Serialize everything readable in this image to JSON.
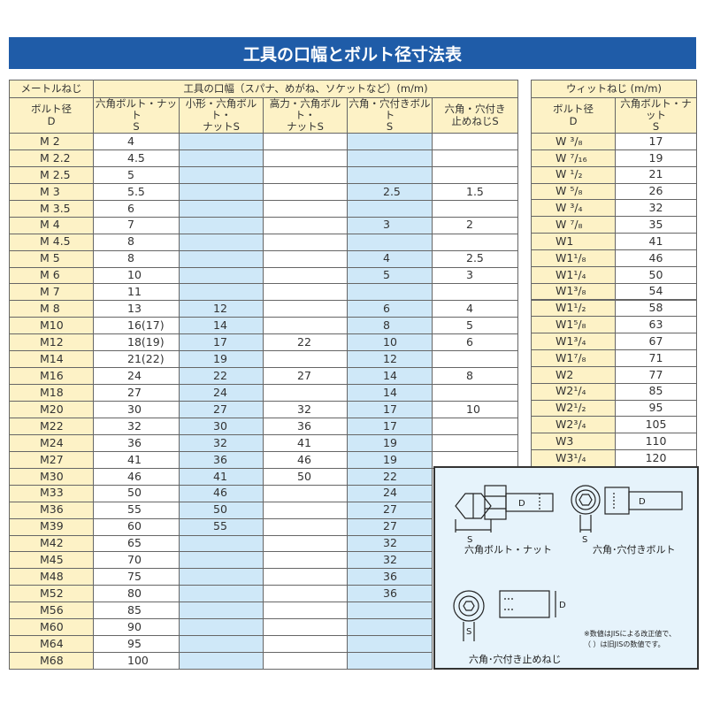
{
  "header": {
    "title": "工具の口幅とボルト径寸法表"
  },
  "metric_table": {
    "group_headers": [
      "メートルねじ",
      "工具の口幅（スパナ、めがね、ソケットなど）(m/m)"
    ],
    "columns": [
      "ボルト径\nD",
      "六角ボルト・ナット\nS",
      "小形・六角ボルト・\nナットS",
      "高力・六角ボルト・\nナットS",
      "六角・穴付きボルト\nS",
      "六角・穴付き\n止めねじS"
    ],
    "rows": [
      [
        "M 2",
        "4",
        null,
        null,
        null,
        null
      ],
      [
        "M 2.2",
        "4.5",
        null,
        null,
        null,
        null
      ],
      [
        "M 2.5",
        "5",
        null,
        null,
        null,
        null
      ],
      [
        "M 3",
        "5.5",
        null,
        null,
        "2.5",
        "1.5"
      ],
      [
        "M 3.5",
        "6",
        null,
        null,
        null,
        null
      ],
      [
        "M 4",
        "7",
        null,
        null,
        "3",
        "2"
      ],
      [
        "M 4.5",
        "8",
        null,
        null,
        null,
        null
      ],
      [
        "M 5",
        "8",
        null,
        null,
        "4",
        "2.5"
      ],
      [
        "M 6",
        "10",
        null,
        null,
        "5",
        "3"
      ],
      [
        "M 7",
        "11",
        null,
        null,
        null,
        null
      ],
      [
        "M 8",
        "13",
        "12",
        null,
        "6",
        "4"
      ],
      [
        "M10",
        "16(17)",
        "14",
        null,
        "8",
        "5"
      ],
      [
        "M12",
        "18(19)",
        "17",
        "22",
        "10",
        "6"
      ],
      [
        "M14",
        "21(22)",
        "19",
        null,
        "12",
        null
      ],
      [
        "M16",
        "24",
        "22",
        "27",
        "14",
        "8"
      ],
      [
        "M18",
        "27",
        "24",
        null,
        "14",
        null
      ],
      [
        "M20",
        "30",
        "27",
        "32",
        "17",
        "10"
      ],
      [
        "M22",
        "32",
        "30",
        "36",
        "17",
        null
      ],
      [
        "M24",
        "36",
        "32",
        "41",
        "19",
        null
      ],
      [
        "M27",
        "41",
        "36",
        "46",
        "19",
        null
      ],
      [
        "M30",
        "46",
        "41",
        "50",
        "22",
        null
      ],
      [
        "M33",
        "50",
        "46",
        null,
        "24",
        null
      ],
      [
        "M36",
        "55",
        "50",
        null,
        "27",
        null
      ],
      [
        "M39",
        "60",
        "55",
        null,
        "27",
        null
      ],
      [
        "M42",
        "65",
        null,
        null,
        "32",
        null
      ],
      [
        "M45",
        "70",
        null,
        null,
        "32",
        null
      ],
      [
        "M48",
        "75",
        null,
        null,
        "36",
        null
      ],
      [
        "M52",
        "80",
        null,
        null,
        "36",
        null
      ],
      [
        "M56",
        "85",
        null,
        null,
        null,
        null
      ],
      [
        "M60",
        "90",
        null,
        null,
        null,
        null
      ],
      [
        "M64",
        "95",
        null,
        null,
        null,
        null
      ],
      [
        "M68",
        "100",
        null,
        null,
        null,
        null
      ]
    ]
  },
  "whit_table": {
    "group_header": "ウィットねじ (m/m)",
    "columns": [
      "ボルト径\nD",
      "六角ボルト・ナット\nS"
    ],
    "rows": [
      [
        "W ³/₈",
        "17"
      ],
      [
        "W ⁷/₁₆",
        "19"
      ],
      [
        "W ¹/₂",
        "21"
      ],
      [
        "W ⁵/₈",
        "26"
      ],
      [
        "W ³/₄",
        "32"
      ],
      [
        "W ⁷/₈",
        "35"
      ],
      [
        "W1",
        "41"
      ],
      [
        "W1¹/₈",
        "46"
      ],
      [
        "W1¹/₄",
        "50"
      ],
      [
        "W1³/₈",
        "54"
      ],
      [
        "W1¹/₂",
        "58"
      ],
      [
        "W1⁵/₈",
        "63"
      ],
      [
        "W1³/₄",
        "67"
      ],
      [
        "W1⁷/₈",
        "71"
      ],
      [
        "W2",
        "77"
      ],
      [
        "W2¹/₄",
        "85"
      ],
      [
        "W2¹/₂",
        "95"
      ],
      [
        "W2³/₄",
        "105"
      ],
      [
        "W3",
        "110"
      ],
      [
        "W3¹/₄",
        "120"
      ]
    ]
  },
  "diagram": {
    "labels": [
      "六角ボルト・ナット",
      "六角･穴付きボルト",
      "六角･穴付き止めねじ"
    ],
    "dimension_letters": [
      "D",
      "S",
      "D",
      "S",
      "D",
      "S"
    ],
    "notes": [
      "※数値はJISによる改正値で、",
      "（ ）は旧JISの数値です。"
    ]
  }
}
